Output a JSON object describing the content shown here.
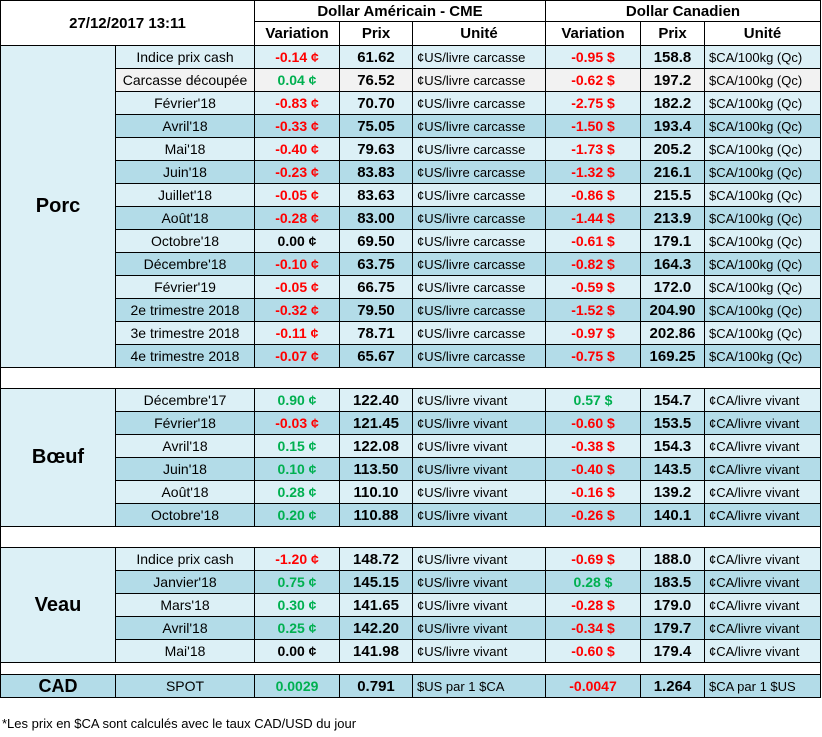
{
  "header": {
    "date": "27/12/2017 13:11",
    "usd_title": "Dollar Américain - CME",
    "cad_title": "Dollar Canadien",
    "col_variation": "Variation",
    "col_prix": "Prix",
    "col_unite": "Unité"
  },
  "groups": [
    {
      "name": "Porc",
      "rows": [
        {
          "label": "Indice prix cash",
          "usd_var": "-0.14 ¢",
          "usd_sign": "neg",
          "usd_price": "61.62",
          "usd_unit": "¢US/livre carcasse",
          "cad_var": "-0.95 $",
          "cad_sign": "neg",
          "cad_price": "158.8",
          "cad_unit": "$CA/100kg (Qc)"
        },
        {
          "label": "Carcasse découpée",
          "usd_var": "0.04 ¢",
          "usd_sign": "pos",
          "usd_price": "76.52",
          "usd_unit": "¢US/livre carcasse",
          "cad_var": "-0.62 $",
          "cad_sign": "neg",
          "cad_price": "197.2",
          "cad_unit": "$CA/100kg (Qc)"
        },
        {
          "label": "Février'18",
          "usd_var": "-0.83 ¢",
          "usd_sign": "neg",
          "usd_price": "70.70",
          "usd_unit": "¢US/livre carcasse",
          "cad_var": "-2.75 $",
          "cad_sign": "neg",
          "cad_price": "182.2",
          "cad_unit": "$CA/100kg (Qc)"
        },
        {
          "label": "Avril'18",
          "usd_var": "-0.33 ¢",
          "usd_sign": "neg",
          "usd_price": "75.05",
          "usd_unit": "¢US/livre carcasse",
          "cad_var": "-1.50 $",
          "cad_sign": "neg",
          "cad_price": "193.4",
          "cad_unit": "$CA/100kg (Qc)"
        },
        {
          "label": "Mai'18",
          "usd_var": "-0.40 ¢",
          "usd_sign": "neg",
          "usd_price": "79.63",
          "usd_unit": "¢US/livre carcasse",
          "cad_var": "-1.73 $",
          "cad_sign": "neg",
          "cad_price": "205.2",
          "cad_unit": "$CA/100kg (Qc)"
        },
        {
          "label": "Juin'18",
          "usd_var": "-0.23 ¢",
          "usd_sign": "neg",
          "usd_price": "83.83",
          "usd_unit": "¢US/livre carcasse",
          "cad_var": "-1.32 $",
          "cad_sign": "neg",
          "cad_price": "216.1",
          "cad_unit": "$CA/100kg (Qc)"
        },
        {
          "label": "Juillet'18",
          "usd_var": "-0.05 ¢",
          "usd_sign": "neg",
          "usd_price": "83.63",
          "usd_unit": "¢US/livre carcasse",
          "cad_var": "-0.86 $",
          "cad_sign": "neg",
          "cad_price": "215.5",
          "cad_unit": "$CA/100kg (Qc)"
        },
        {
          "label": "Août'18",
          "usd_var": "-0.28 ¢",
          "usd_sign": "neg",
          "usd_price": "83.00",
          "usd_unit": "¢US/livre carcasse",
          "cad_var": "-1.44 $",
          "cad_sign": "neg",
          "cad_price": "213.9",
          "cad_unit": "$CA/100kg (Qc)"
        },
        {
          "label": "Octobre'18",
          "usd_var": "0.00 ¢",
          "usd_sign": "zero",
          "usd_price": "69.50",
          "usd_unit": "¢US/livre carcasse",
          "cad_var": "-0.61 $",
          "cad_sign": "neg",
          "cad_price": "179.1",
          "cad_unit": "$CA/100kg (Qc)"
        },
        {
          "label": "Décembre'18",
          "usd_var": "-0.10 ¢",
          "usd_sign": "neg",
          "usd_price": "63.75",
          "usd_unit": "¢US/livre carcasse",
          "cad_var": "-0.82 $",
          "cad_sign": "neg",
          "cad_price": "164.3",
          "cad_unit": "$CA/100kg (Qc)"
        },
        {
          "label": "Février'19",
          "usd_var": "-0.05 ¢",
          "usd_sign": "neg",
          "usd_price": "66.75",
          "usd_unit": "¢US/livre carcasse",
          "cad_var": "-0.59 $",
          "cad_sign": "neg",
          "cad_price": "172.0",
          "cad_unit": "$CA/100kg (Qc)"
        },
        {
          "label": "2e trimestre 2018",
          "usd_var": "-0.32 ¢",
          "usd_sign": "neg",
          "usd_price": "79.50",
          "usd_unit": "¢US/livre carcasse",
          "cad_var": "-1.52 $",
          "cad_sign": "neg",
          "cad_price": "204.90",
          "cad_unit": "$CA/100kg (Qc)"
        },
        {
          "label": "3e trimestre 2018",
          "usd_var": "-0.11 ¢",
          "usd_sign": "neg",
          "usd_price": "78.71",
          "usd_unit": "¢US/livre carcasse",
          "cad_var": "-0.97 $",
          "cad_sign": "neg",
          "cad_price": "202.86",
          "cad_unit": "$CA/100kg (Qc)"
        },
        {
          "label": "4e trimestre 2018",
          "usd_var": "-0.07 ¢",
          "usd_sign": "neg",
          "usd_price": "65.67",
          "usd_unit": "¢US/livre carcasse",
          "cad_var": "-0.75 $",
          "cad_sign": "neg",
          "cad_price": "169.25",
          "cad_unit": "$CA/100kg (Qc)"
        }
      ]
    },
    {
      "name": "Bœuf",
      "rows": [
        {
          "label": "Décembre'17",
          "usd_var": "0.90 ¢",
          "usd_sign": "pos",
          "usd_price": "122.40",
          "usd_unit": "¢US/livre vivant",
          "cad_var": "0.57 $",
          "cad_sign": "pos",
          "cad_price": "154.7",
          "cad_unit": "¢CA/livre vivant"
        },
        {
          "label": "Février'18",
          "usd_var": "-0.03 ¢",
          "usd_sign": "neg",
          "usd_price": "121.45",
          "usd_unit": "¢US/livre vivant",
          "cad_var": "-0.60 $",
          "cad_sign": "neg",
          "cad_price": "153.5",
          "cad_unit": "¢CA/livre vivant"
        },
        {
          "label": "Avril'18",
          "usd_var": "0.15 ¢",
          "usd_sign": "pos",
          "usd_price": "122.08",
          "usd_unit": "¢US/livre vivant",
          "cad_var": "-0.38 $",
          "cad_sign": "neg",
          "cad_price": "154.3",
          "cad_unit": "¢CA/livre vivant"
        },
        {
          "label": "Juin'18",
          "usd_var": "0.10 ¢",
          "usd_sign": "pos",
          "usd_price": "113.50",
          "usd_unit": "¢US/livre vivant",
          "cad_var": "-0.40 $",
          "cad_sign": "neg",
          "cad_price": "143.5",
          "cad_unit": "¢CA/livre vivant"
        },
        {
          "label": "Août'18",
          "usd_var": "0.28 ¢",
          "usd_sign": "pos",
          "usd_price": "110.10",
          "usd_unit": "¢US/livre vivant",
          "cad_var": "-0.16 $",
          "cad_sign": "neg",
          "cad_price": "139.2",
          "cad_unit": "¢CA/livre vivant"
        },
        {
          "label": "Octobre'18",
          "usd_var": "0.20 ¢",
          "usd_sign": "pos",
          "usd_price": "110.88",
          "usd_unit": "¢US/livre vivant",
          "cad_var": "-0.26 $",
          "cad_sign": "neg",
          "cad_price": "140.1",
          "cad_unit": "¢CA/livre vivant"
        }
      ]
    },
    {
      "name": "Veau",
      "rows": [
        {
          "label": "Indice prix cash",
          "usd_var": "-1.20 ¢",
          "usd_sign": "neg",
          "usd_price": "148.72",
          "usd_unit": "¢US/livre vivant",
          "cad_var": "-0.69 $",
          "cad_sign": "neg",
          "cad_price": "188.0",
          "cad_unit": "¢CA/livre vivant"
        },
        {
          "label": "Janvier'18",
          "usd_var": "0.75 ¢",
          "usd_sign": "pos",
          "usd_price": "145.15",
          "usd_unit": "¢US/livre vivant",
          "cad_var": "0.28 $",
          "cad_sign": "pos",
          "cad_price": "183.5",
          "cad_unit": "¢CA/livre vivant"
        },
        {
          "label": "Mars'18",
          "usd_var": "0.30 ¢",
          "usd_sign": "pos",
          "usd_price": "141.65",
          "usd_unit": "¢US/livre vivant",
          "cad_var": "-0.28 $",
          "cad_sign": "neg",
          "cad_price": "179.0",
          "cad_unit": "¢CA/livre vivant"
        },
        {
          "label": "Avril'18",
          "usd_var": "0.25 ¢",
          "usd_sign": "pos",
          "usd_price": "142.20",
          "usd_unit": "¢US/livre vivant",
          "cad_var": "-0.34 $",
          "cad_sign": "neg",
          "cad_price": "179.7",
          "cad_unit": "¢CA/livre vivant"
        },
        {
          "label": "Mai'18",
          "usd_var": "0.00 ¢",
          "usd_sign": "zero",
          "usd_price": "141.98",
          "usd_unit": "¢US/livre vivant",
          "cad_var": "-0.60 $",
          "cad_sign": "neg",
          "cad_price": "179.4",
          "cad_unit": "¢CA/livre vivant"
        }
      ]
    }
  ],
  "cad": {
    "label": "CAD",
    "type": "SPOT",
    "usd_var": "0.0029",
    "usd_sign": "pos",
    "usd_price": "0.791",
    "usd_unit": "$US par 1 $CA",
    "cad_var": "-0.0047",
    "cad_sign": "neg",
    "cad_price": "1.264",
    "cad_unit": "$CA par 1 $US"
  },
  "footnote": "*Les  prix en $CA sont calculés avec le taux CAD/USD du jour"
}
